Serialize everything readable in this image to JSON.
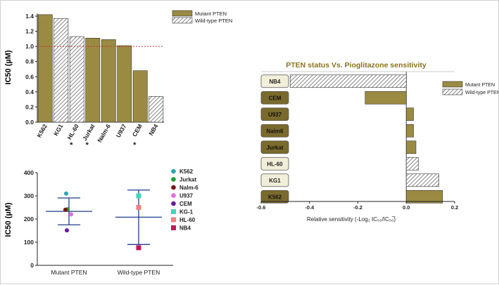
{
  "colors": {
    "mutant": "#9b8a42",
    "mutant_label_fill": "#7a6a2c",
    "wild_label_fill": "#f2efd9",
    "stroke": "#333333",
    "ref_line": "#c0392b",
    "summary_line": "#1f3c88",
    "axis": "#222222"
  },
  "legends": {
    "mutant": "Mutant PTEN",
    "wild": "Wild-type PTEN"
  },
  "chart_data": [
    {
      "id": "ic50-bar",
      "type": "bar",
      "title": "",
      "ylabel": "IC50 (µM)",
      "ylim": [
        0,
        1.4
      ],
      "yticks": [
        "0.0",
        "0.2",
        "0.4",
        "0.6",
        "0.8",
        "1.0",
        "1.2",
        "1.4"
      ],
      "reference_line": 1.0,
      "categories": [
        "K562",
        "KG1",
        "HL-60",
        "Jurkat",
        "Nalm-6",
        "U937",
        "CEM",
        "NB4"
      ],
      "values": [
        1.42,
        1.37,
        1.13,
        1.11,
        1.09,
        1.01,
        0.68,
        0.34
      ],
      "status": [
        "mutant",
        "wild",
        "wild",
        "mutant",
        "mutant",
        "mutant",
        "mutant",
        "wild"
      ],
      "asterisks": [
        "",
        "",
        "*",
        "*",
        "",
        "",
        "*",
        ""
      ]
    },
    {
      "id": "ic50-scatter",
      "type": "scatter",
      "ylabel": "IC50 (µM)",
      "ylim": [
        0,
        400
      ],
      "yticks": [
        "0",
        "100",
        "200",
        "300",
        "400"
      ],
      "groups": [
        "Mutant PTEN",
        "Wild-type PTEN"
      ],
      "summary": [
        {
          "group": "Mutant PTEN",
          "mean": 233,
          "upper": 291,
          "lower": 175
        },
        {
          "group": "Wild-type PTEN",
          "mean": 208,
          "upper": 325,
          "lower": 90
        }
      ],
      "points": [
        {
          "label": "K562",
          "group": "Mutant PTEN",
          "value": 310,
          "offset": -4,
          "color": "#2aa5b5",
          "shape": "circle"
        },
        {
          "label": "Jurkat",
          "group": "Mutant PTEN",
          "value": 242,
          "offset": -2,
          "color": "#1e9b3a",
          "shape": "circle"
        },
        {
          "label": "Nalm-6",
          "group": "Mutant PTEN",
          "value": 240,
          "offset": -5,
          "color": "#7a1414",
          "shape": "circle"
        },
        {
          "label": "U937",
          "group": "Mutant PTEN",
          "value": 220,
          "offset": 3,
          "color": "#e86be0",
          "shape": "circle"
        },
        {
          "label": "CEM",
          "group": "Mutant PTEN",
          "value": 151,
          "offset": -3,
          "color": "#6a1b9a",
          "shape": "circle"
        },
        {
          "label": "KG-1",
          "group": "Wild-type PTEN",
          "value": 300,
          "offset": 0,
          "color": "#44d4b8",
          "shape": "square"
        },
        {
          "label": "HL-60",
          "group": "Wild-type PTEN",
          "value": 250,
          "offset": 0,
          "color": "#f08080",
          "shape": "square"
        },
        {
          "label": "NB4",
          "group": "Wild-type PTEN",
          "value": 76,
          "offset": 0,
          "color": "#c2185b",
          "shape": "square"
        }
      ]
    },
    {
      "id": "sensitivity-hbar",
      "type": "bar",
      "orientation": "horizontal",
      "title": "PTEN status Vs. Pioglitazone sensitivity",
      "xlabel": "Relative sensitivity (-Log₂ IC₅₀/IC₅₀̅)",
      "xlim": [
        -0.6,
        0.2
      ],
      "xticks": [
        "-0.6",
        "-0.4",
        "-0.2",
        "0.0",
        "0.2"
      ],
      "categories": [
        "NB4",
        "CEM",
        "U937",
        "Nalm6",
        "Jurkat",
        "HL-60",
        "KG1",
        "K562"
      ],
      "values": [
        -0.48,
        -0.17,
        0.03,
        0.03,
        0.04,
        0.05,
        0.135,
        0.15
      ],
      "status": [
        "wild",
        "mutant",
        "mutant",
        "mutant",
        "mutant",
        "wild",
        "wild",
        "mutant"
      ]
    }
  ]
}
